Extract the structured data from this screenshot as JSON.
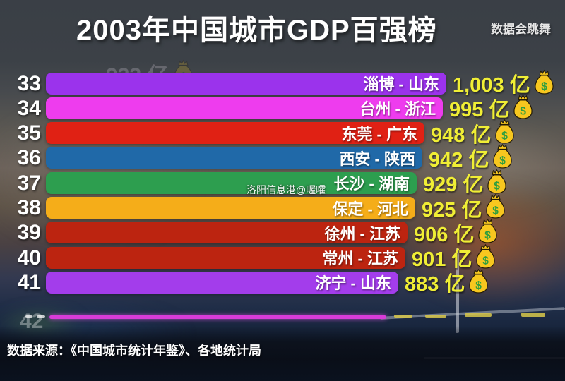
{
  "header": {
    "title": "2003年中国城市GDP百强榜",
    "brand": "数据会跳舞"
  },
  "ghost": {
    "text": "922 亿"
  },
  "watermark": "洛阳信息港@喔嚯",
  "footer": {
    "source": "数据来源：《中国城市统计年鉴》、各地统计局"
  },
  "colors": {
    "value_text": "#f0ee35",
    "header_background": "#3b4046",
    "money_bag": "#f7c71f",
    "money_bag_dollar": "#2e9e3f"
  },
  "chart_data": {
    "type": "bar",
    "orientation": "horizontal",
    "title": "2003年中国城市GDP百强榜",
    "unit": "亿",
    "legend": "none",
    "axis": "none (bar race frame, ranks 33-41 visible)",
    "rows": [
      {
        "rank": 33,
        "city": "淄博",
        "province": "山东",
        "label": "淄博 - 山东",
        "value": 1003,
        "display_value": "1,003 亿",
        "color": "#9b33ec"
      },
      {
        "rank": 34,
        "city": "台州",
        "province": "浙江",
        "label": "台州 - 浙江",
        "value": 995,
        "display_value": "995 亿",
        "color": "#ee3cee"
      },
      {
        "rank": 35,
        "city": "东莞",
        "province": "广东",
        "label": "东莞 - 广东",
        "value": 948,
        "display_value": "948 亿",
        "color": "#e02114"
      },
      {
        "rank": 36,
        "city": "西安",
        "province": "陕西",
        "label": "西安 - 陕西",
        "value": 942,
        "display_value": "942 亿",
        "color": "#2069a8"
      },
      {
        "rank": 37,
        "city": "长沙",
        "province": "湖南",
        "label": "长沙 - 湖南",
        "value": 929,
        "display_value": "929 亿",
        "color": "#2d9e4f"
      },
      {
        "rank": 38,
        "city": "保定",
        "province": "河北",
        "label": "保定 - 河北",
        "value": 925,
        "display_value": "925 亿",
        "color": "#f5ad19"
      },
      {
        "rank": 39,
        "city": "徐州",
        "province": "江苏",
        "label": "徐州 - 江苏",
        "value": 906,
        "display_value": "906 亿",
        "color": "#bc2410"
      },
      {
        "rank": 40,
        "city": "常州",
        "province": "江苏",
        "label": "常州 - 江苏",
        "value": 901,
        "display_value": "901 亿",
        "color": "#bc2410"
      },
      {
        "rank": 41,
        "city": "济宁",
        "province": "山东",
        "label": "济宁 - 山东",
        "value": 883,
        "display_value": "883 亿",
        "color": "#a33deb"
      }
    ],
    "entering_row": {
      "rank": 42,
      "color": "#d83cd8"
    },
    "ghost_value": "922 亿"
  }
}
